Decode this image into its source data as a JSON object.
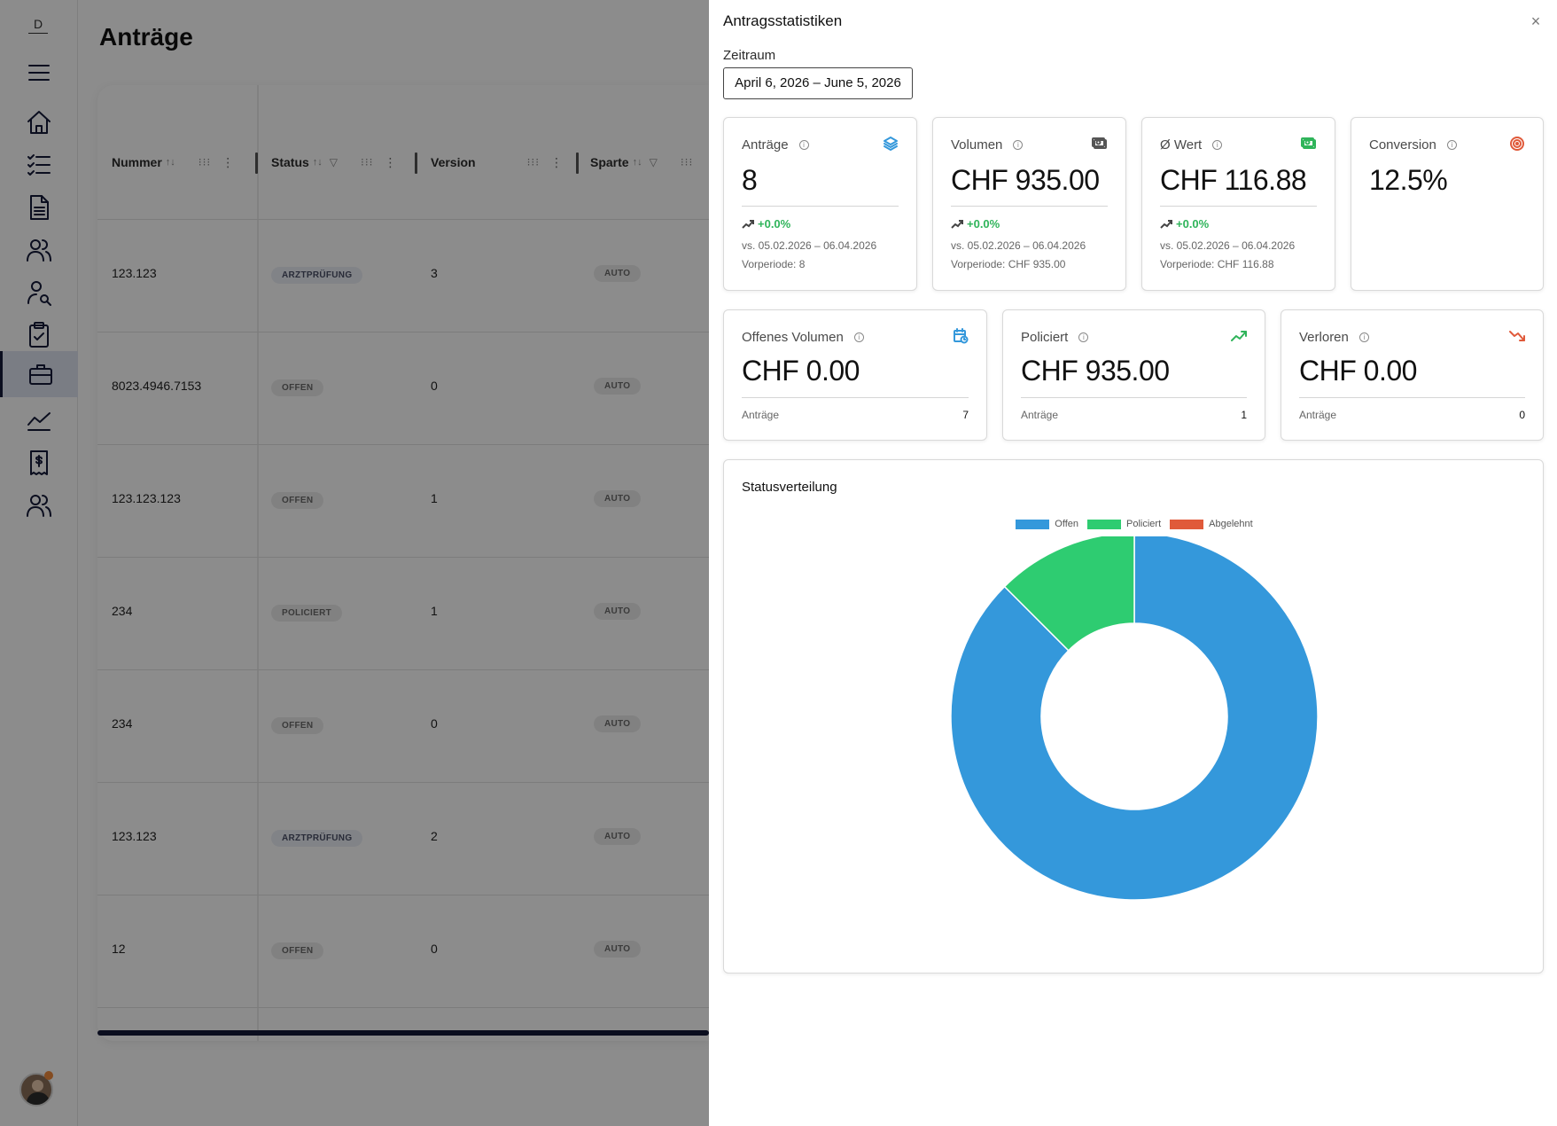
{
  "rail": {
    "top_letter": "D",
    "items": [
      "menu-icon",
      "home-icon",
      "task-list-icon",
      "document-icon",
      "users-icon",
      "user-search-icon",
      "clipboard-icon",
      "briefcase-icon",
      "chart-icon",
      "receipt-icon",
      "team-icon"
    ],
    "active": "briefcase-icon"
  },
  "page": {
    "title": "Anträge",
    "columns": [
      "Nummer",
      "Status",
      "Version",
      "Sparte"
    ],
    "rows": [
      {
        "nummer": "123.123",
        "status": "ARZTPRÜFUNG",
        "version": "3",
        "sparte": "AUTO"
      },
      {
        "nummer": "8023.4946.7153",
        "status": "OFFEN",
        "version": "0",
        "sparte": "AUTO"
      },
      {
        "nummer": "123.123.123",
        "status": "OFFEN",
        "version": "1",
        "sparte": "AUTO"
      },
      {
        "nummer": "234",
        "status": "POLICIERT",
        "version": "1",
        "sparte": "AUTO"
      },
      {
        "nummer": "234",
        "status": "OFFEN",
        "version": "0",
        "sparte": "AUTO"
      },
      {
        "nummer": "123.123",
        "status": "ARZTPRÜFUNG",
        "version": "2",
        "sparte": "AUTO"
      },
      {
        "nummer": "12",
        "status": "OFFEN",
        "version": "0",
        "sparte": "AUTO"
      }
    ]
  },
  "drawer": {
    "title": "Antragsstatistiken",
    "close": "×",
    "zeitraum_label": "Zeitraum",
    "date_range": "April 6, 2026 – June 5, 2026"
  },
  "stats": {
    "antraege": {
      "label": "Anträge",
      "value": "8",
      "delta": "+0.0%",
      "vs": "vs. 05.02.2026 – 06.04.2026",
      "prev": "Vorperiode: 8"
    },
    "volumen": {
      "label": "Volumen",
      "value": "CHF 935.00",
      "delta": "+0.0%",
      "vs": "vs. 05.02.2026 – 06.04.2026",
      "prev": "Vorperiode: CHF 935.00"
    },
    "wert": {
      "label": "Ø Wert",
      "value": "CHF 116.88",
      "delta": "+0.0%",
      "vs": "vs. 05.02.2026 – 06.04.2026",
      "prev": "Vorperiode: CHF 116.88"
    },
    "conversion": {
      "label": "Conversion",
      "value": "12.5%"
    },
    "offenes_volumen": {
      "label": "Offenes Volumen",
      "value": "CHF 0.00",
      "foot_label": "Anträge",
      "foot_value": "7"
    },
    "policiert": {
      "label": "Policiert",
      "value": "CHF 935.00",
      "foot_label": "Anträge",
      "foot_value": "1"
    },
    "verloren": {
      "label": "Verloren",
      "value": "CHF 0.00",
      "foot_label": "Anträge",
      "foot_value": "0"
    }
  },
  "colors": {
    "offen": "#3498db",
    "policiert": "#2ecc71",
    "abgelehnt": "#e05a3a",
    "brand": "#151a3a"
  },
  "chart_data": {
    "type": "pie",
    "title": "Statusverteilung",
    "donut": true,
    "legend_position": "top",
    "categories": [
      "Offen",
      "Policiert",
      "Abgelehnt"
    ],
    "values": [
      7,
      1,
      0
    ],
    "colors": [
      "#3498db",
      "#2ecc71",
      "#e05a3a"
    ]
  }
}
